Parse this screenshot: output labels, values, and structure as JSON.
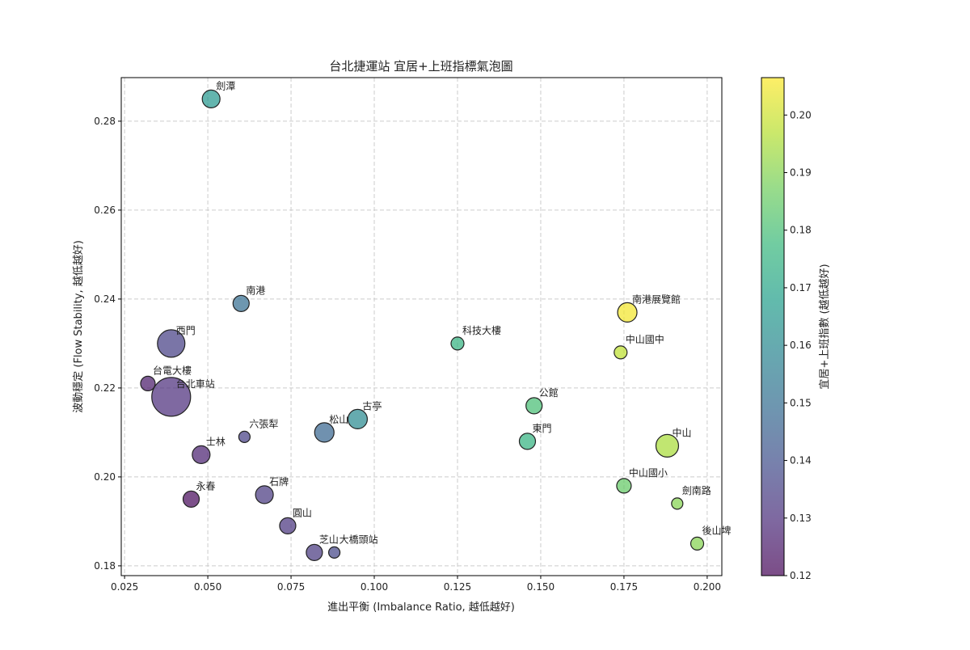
{
  "chart_data": {
    "type": "scatter",
    "title": "台北捷運站 宜居+上班指標氣泡圖",
    "xlabel": "進出平衡 (Imbalance Ratio, 越低越好)",
    "ylabel": "波動穩定 (Flow Stability, 越低越好)",
    "colorbar_label": "宜居+上班指數 (越低越好)",
    "colormap": "viridis",
    "xlim": [
      0.024,
      0.2044
    ],
    "ylim": [
      0.1778,
      0.2898
    ],
    "clim": [
      0.12,
      0.2065
    ],
    "grid": true,
    "xticks": [
      "0.025",
      "0.050",
      "0.075",
      "0.100",
      "0.125",
      "0.150",
      "0.175",
      "0.200"
    ],
    "yticks": [
      "0.18",
      "0.20",
      "0.22",
      "0.24",
      "0.26",
      "0.28"
    ],
    "cticks": [
      "0.12",
      "0.13",
      "0.14",
      "0.15",
      "0.16",
      "0.17",
      "0.18",
      "0.19",
      "0.20"
    ],
    "points": [
      {
        "name": "劍潭",
        "x": 0.051,
        "y": 0.285,
        "c": 0.165,
        "size": 121
      },
      {
        "name": "南港",
        "x": 0.06,
        "y": 0.239,
        "c": 0.15,
        "size": 100
      },
      {
        "name": "西門",
        "x": 0.039,
        "y": 0.23,
        "c": 0.135,
        "size": 289
      },
      {
        "name": "台電大樓",
        "x": 0.032,
        "y": 0.221,
        "c": 0.125,
        "size": 81
      },
      {
        "name": "台北車站",
        "x": 0.039,
        "y": 0.218,
        "c": 0.13,
        "size": 576
      },
      {
        "name": "六張犁",
        "x": 0.061,
        "y": 0.209,
        "c": 0.135,
        "size": 49
      },
      {
        "name": "士林",
        "x": 0.048,
        "y": 0.205,
        "c": 0.127,
        "size": 121
      },
      {
        "name": "松山",
        "x": 0.085,
        "y": 0.21,
        "c": 0.147,
        "size": 144
      },
      {
        "name": "古亭",
        "x": 0.095,
        "y": 0.213,
        "c": 0.16,
        "size": 144
      },
      {
        "name": "永春",
        "x": 0.045,
        "y": 0.195,
        "c": 0.121,
        "size": 100
      },
      {
        "name": "石牌",
        "x": 0.067,
        "y": 0.196,
        "c": 0.133,
        "size": 121
      },
      {
        "name": "圓山",
        "x": 0.074,
        "y": 0.189,
        "c": 0.132,
        "size": 100
      },
      {
        "name": "芝山",
        "x": 0.082,
        "y": 0.183,
        "c": 0.133,
        "size": 100
      },
      {
        "name": "大橋頭站",
        "x": 0.088,
        "y": 0.183,
        "c": 0.137,
        "size": 49
      },
      {
        "name": "科技大樓",
        "x": 0.125,
        "y": 0.23,
        "c": 0.175,
        "size": 64
      },
      {
        "name": "南港展覽館",
        "x": 0.176,
        "y": 0.237,
        "c": 0.205,
        "size": 144
      },
      {
        "name": "中山國中",
        "x": 0.174,
        "y": 0.228,
        "c": 0.198,
        "size": 64
      },
      {
        "name": "公館",
        "x": 0.148,
        "y": 0.216,
        "c": 0.18,
        "size": 100
      },
      {
        "name": "東門",
        "x": 0.146,
        "y": 0.208,
        "c": 0.175,
        "size": 100
      },
      {
        "name": "中山",
        "x": 0.188,
        "y": 0.207,
        "c": 0.195,
        "size": 196
      },
      {
        "name": "中山國小",
        "x": 0.175,
        "y": 0.198,
        "c": 0.185,
        "size": 81
      },
      {
        "name": "劍南路",
        "x": 0.191,
        "y": 0.194,
        "c": 0.19,
        "size": 49
      },
      {
        "name": "後山埤",
        "x": 0.197,
        "y": 0.185,
        "c": 0.19,
        "size": 64
      }
    ]
  }
}
